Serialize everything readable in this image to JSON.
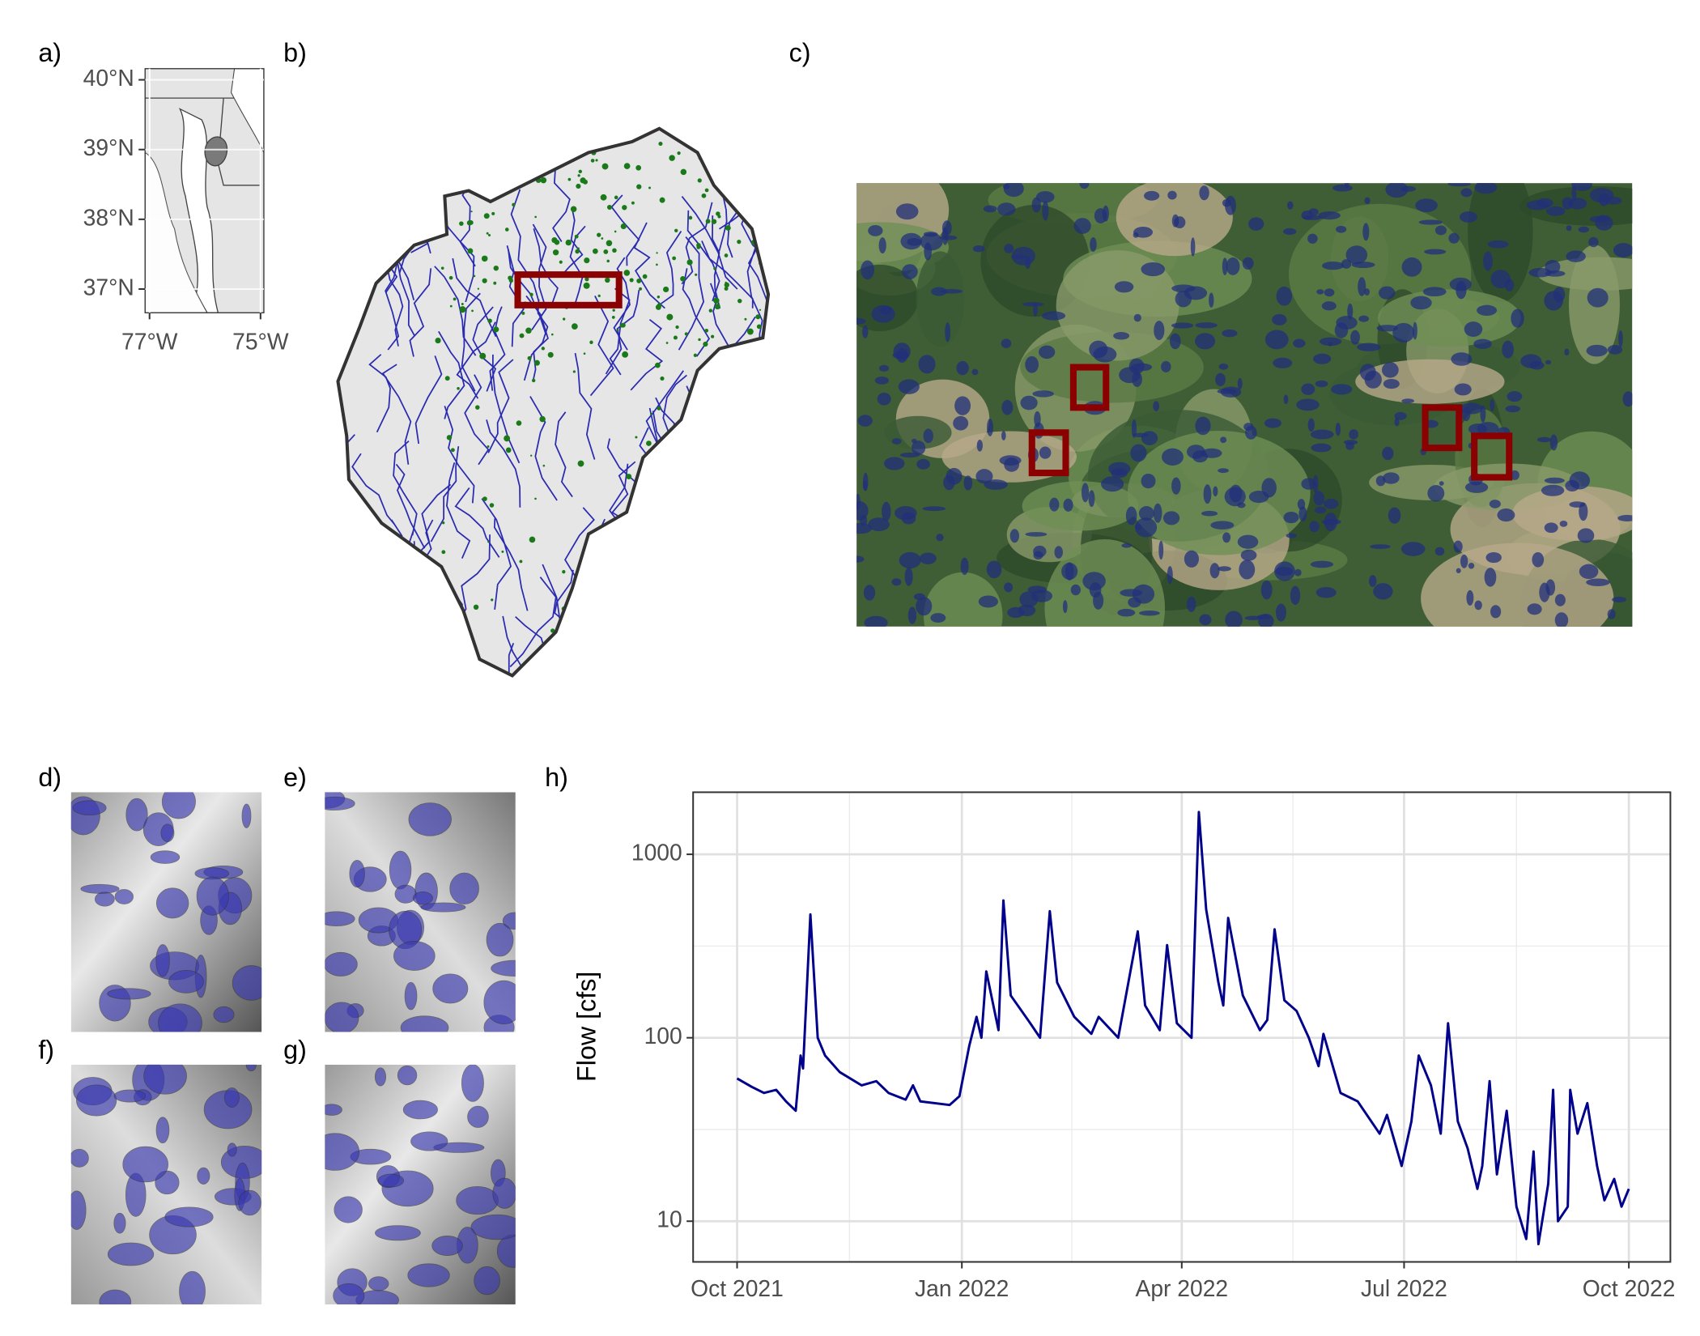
{
  "panel_labels": [
    "a)",
    "b)",
    "c)",
    "d)",
    "e)",
    "f)",
    "g)",
    "h)"
  ],
  "map_a": {
    "xlim": [
      -77.08,
      -74.94
    ],
    "ylim": [
      36.66,
      40.16
    ],
    "xticks": [
      {
        "value": -77,
        "label": "77°W"
      },
      {
        "value": -75,
        "label": "75°W"
      }
    ],
    "yticks": [
      {
        "value": 40,
        "label": "40°N"
      },
      {
        "value": 39,
        "label": "39°N"
      },
      {
        "value": 38,
        "label": "38°N"
      },
      {
        "value": 37,
        "label": "37°N"
      }
    ]
  },
  "chart_data": {
    "type": "line",
    "y_label": "Flow [cfs]",
    "log_y": true,
    "grid": true,
    "xlim": [
      "2021-09-13",
      "2022-10-18"
    ],
    "ylim": [
      6,
      2180
    ],
    "xticks": [
      {
        "value": "2021-10-01",
        "label": "Oct 2021"
      },
      {
        "value": "2022-01-01",
        "label": "Jan 2022"
      },
      {
        "value": "2022-04-01",
        "label": "Apr 2022"
      },
      {
        "value": "2022-07-01",
        "label": "Jul 2022"
      },
      {
        "value": "2022-10-01",
        "label": "Oct 2022"
      }
    ],
    "yticks": [
      10,
      100,
      1000
    ],
    "x": [
      "2021-10-01",
      "2021-10-07",
      "2021-10-12",
      "2021-10-17",
      "2021-10-21",
      "2021-10-25",
      "2021-10-27",
      "2021-10-28",
      "2021-10-31",
      "2021-11-03",
      "2021-11-06",
      "2021-11-12",
      "2021-11-21",
      "2021-11-27",
      "2021-12-02",
      "2021-12-09",
      "2021-12-12",
      "2021-12-15",
      "2021-12-27",
      "2021-12-31",
      "2022-01-04",
      "2022-01-07",
      "2022-01-09",
      "2022-01-11",
      "2022-01-16",
      "2022-01-18",
      "2022-01-21",
      "2022-01-29",
      "2022-02-02",
      "2022-02-06",
      "2022-02-09",
      "2022-02-16",
      "2022-02-23",
      "2022-02-26",
      "2022-03-06",
      "2022-03-14",
      "2022-03-17",
      "2022-03-23",
      "2022-03-26",
      "2022-03-30",
      "2022-04-05",
      "2022-04-08",
      "2022-04-11",
      "2022-04-16",
      "2022-04-18",
      "2022-04-20",
      "2022-04-26",
      "2022-05-03",
      "2022-05-06",
      "2022-05-09",
      "2022-05-13",
      "2022-05-18",
      "2022-05-23",
      "2022-05-27",
      "2022-05-29",
      "2022-06-05",
      "2022-06-12",
      "2022-06-21",
      "2022-06-24",
      "2022-06-30",
      "2022-07-04",
      "2022-07-07",
      "2022-07-12",
      "2022-07-16",
      "2022-07-19",
      "2022-07-23",
      "2022-07-27",
      "2022-07-31",
      "2022-08-02",
      "2022-08-05",
      "2022-08-08",
      "2022-08-12",
      "2022-08-16",
      "2022-08-20",
      "2022-08-23",
      "2022-08-25",
      "2022-08-29",
      "2022-08-31",
      "2022-09-02",
      "2022-09-06",
      "2022-09-07",
      "2022-09-10",
      "2022-09-14",
      "2022-09-18",
      "2022-09-21",
      "2022-09-25",
      "2022-09-28",
      "2022-10-01"
    ],
    "series": [
      {
        "color": "#00008b",
        "values": [
          60,
          54,
          50,
          52,
          45,
          40,
          80,
          68,
          470,
          100,
          80,
          65,
          55,
          58,
          50,
          46,
          55,
          45,
          43,
          48,
          90,
          130,
          100,
          230,
          110,
          560,
          170,
          120,
          100,
          490,
          200,
          130,
          105,
          130,
          100,
          380,
          150,
          110,
          320,
          120,
          100,
          1700,
          500,
          200,
          150,
          450,
          170,
          110,
          125,
          390,
          160,
          140,
          100,
          70,
          105,
          50,
          45,
          30,
          38,
          20,
          35,
          80,
          55,
          30,
          120,
          35,
          25,
          15,
          20,
          58,
          18,
          40,
          12,
          8,
          24,
          7.5,
          16,
          52,
          10,
          12,
          52,
          30,
          44,
          20,
          13,
          17,
          12,
          15
        ]
      }
    ]
  }
}
